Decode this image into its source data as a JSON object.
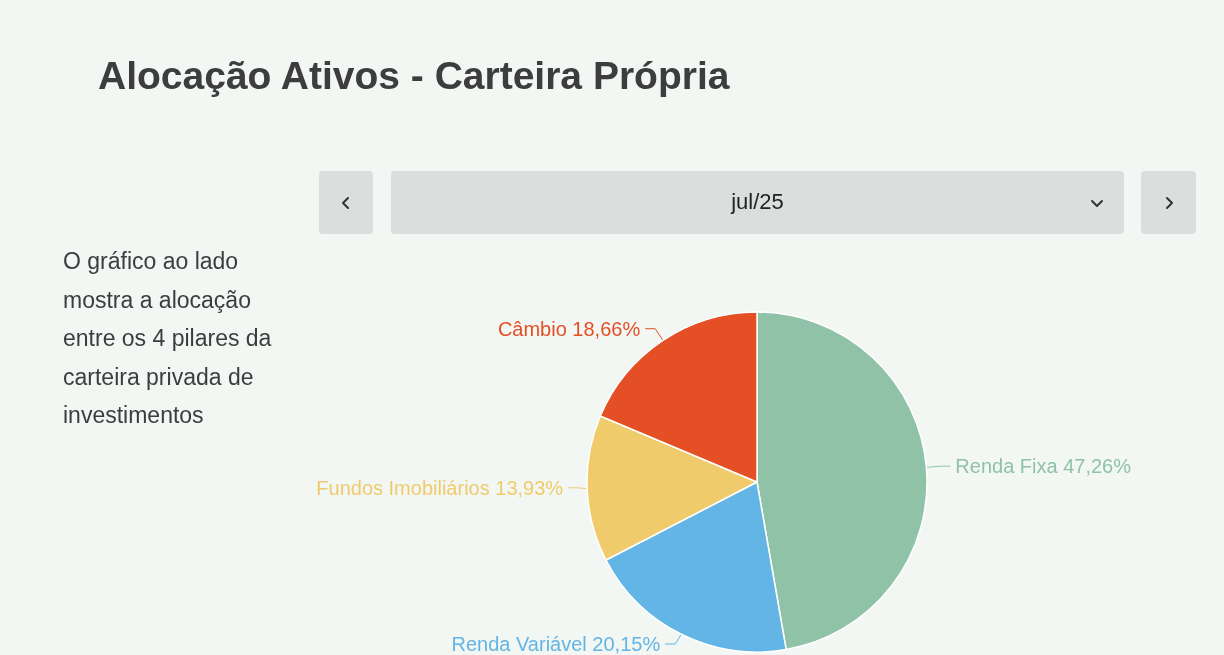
{
  "chart_data": {
    "type": "pie",
    "title": "Alocação Ativos - Carteira Própria",
    "subtitle": "jul/25",
    "annotations": [
      "O gráfico ao lado mostra a alocação entre os 4 pilares da carteira privada de investimentos"
    ],
    "categories": [
      "Renda Fixa",
      "Renda Variável",
      "Fundos Imobiliários",
      "Câmbio"
    ],
    "values": [
      47.26,
      20.15,
      13.93,
      18.66
    ],
    "value_labels": [
      "47,26%",
      "20,15%",
      "13,93%",
      "18,66%"
    ],
    "colors": [
      "#8fc2a6",
      "#62b5e5",
      "#f0cb6b",
      "#e44f25"
    ],
    "legend": false
  }
}
